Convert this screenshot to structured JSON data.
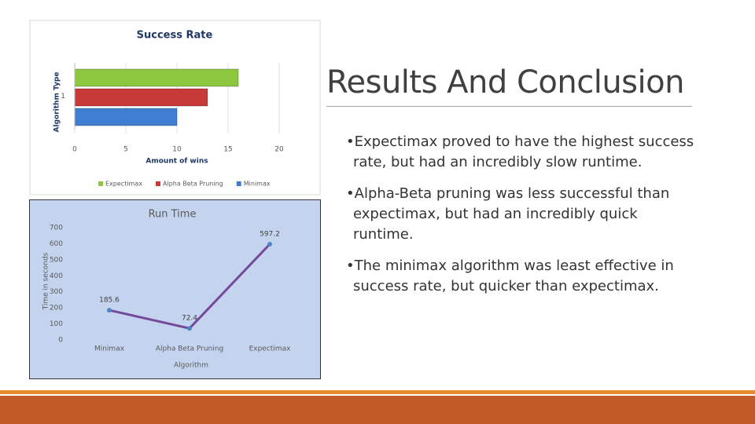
{
  "slide": {
    "title": "Results And Conclusion",
    "bullets": [
      "Expectimax proved to have the highest success rate, but had an incredibly slow runtime.",
      "Alpha-Beta pruning was less successful than expectimax, but had an incredibly quick runtime.",
      "The minimax algorithm was least effective in success rate, but quicker than expectimax."
    ]
  },
  "chart_data": [
    {
      "type": "bar",
      "orientation": "horizontal",
      "title": "Success Rate",
      "y_label": "Algorithm Type",
      "x_label": "Amount of wins",
      "categories": [
        "1"
      ],
      "series": [
        {
          "name": "Expectimax",
          "color": "#8dc63f",
          "values": [
            16
          ]
        },
        {
          "name": "Alpha Beta Pruning",
          "color": "#c8393a",
          "values": [
            13
          ]
        },
        {
          "name": "Minimax",
          "color": "#3f7ed0",
          "values": [
            10
          ]
        }
      ],
      "xlim": [
        0,
        20
      ],
      "xticks": [
        0,
        5,
        10,
        15,
        20
      ],
      "grid": true,
      "legend": "bottom"
    },
    {
      "type": "line",
      "title": "Run Time",
      "y_label": "Time in seconds",
      "x_label": "Algorithm",
      "categories": [
        "Minimax",
        "Alpha Beta Pruning",
        "Expectimax"
      ],
      "series": [
        {
          "name": "Run Time",
          "color": "#74489a",
          "marker_color": "#4a86c8",
          "values": [
            185.6,
            72.4,
            597.2
          ]
        }
      ],
      "ylim": [
        0,
        700
      ],
      "yticks": [
        0,
        100,
        200,
        300,
        400,
        500,
        600,
        700
      ],
      "grid": false,
      "data_labels": true
    }
  ]
}
